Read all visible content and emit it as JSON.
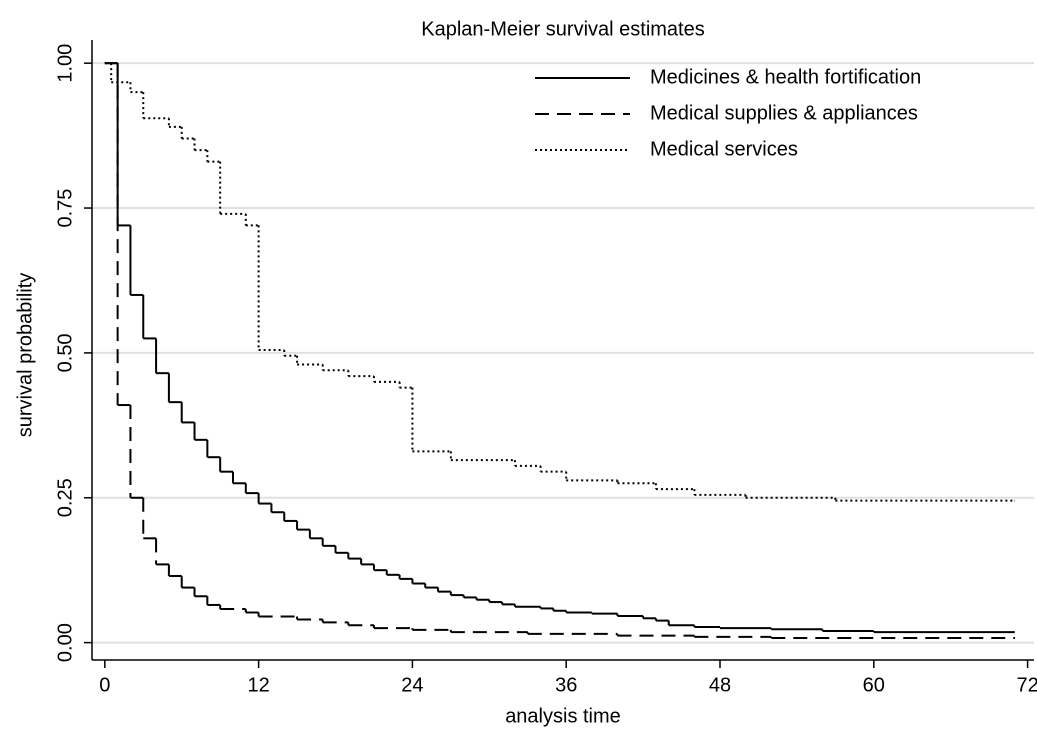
{
  "chart_data": {
    "type": "step",
    "title": "Kaplan-Meier survival estimates",
    "x_label": "analysis time",
    "y_label": "survival probability",
    "xlim": [
      -1,
      72.5
    ],
    "ylim": [
      -0.03,
      1.04
    ],
    "xticks": [
      0,
      12,
      24,
      36,
      48,
      60,
      72
    ],
    "yticks": [
      {
        "value": 0,
        "label": "0.00"
      },
      {
        "value": 0.25,
        "label": "0.25"
      },
      {
        "value": 0.5,
        "label": "0.50"
      },
      {
        "value": 0.75,
        "label": "0.75"
      },
      {
        "value": 1,
        "label": "1.00"
      }
    ],
    "grid": true,
    "legend": "top-right",
    "series": [
      {
        "name": "Medicines & health fortification",
        "color": "#000000",
        "dash": "none",
        "x": [
          0,
          1,
          2,
          3,
          4,
          5,
          6,
          7,
          8,
          9,
          10,
          11,
          12,
          13,
          14,
          15,
          16,
          17,
          18,
          19,
          20,
          21,
          22,
          23,
          24,
          25,
          26,
          27,
          28,
          29,
          30,
          31,
          32,
          34,
          35,
          36,
          38,
          40,
          42,
          43,
          44,
          46,
          48,
          52,
          56,
          60,
          71
        ],
        "values": [
          1.0,
          0.72,
          0.6,
          0.525,
          0.465,
          0.415,
          0.38,
          0.35,
          0.32,
          0.295,
          0.275,
          0.258,
          0.24,
          0.225,
          0.21,
          0.195,
          0.18,
          0.167,
          0.155,
          0.145,
          0.135,
          0.125,
          0.117,
          0.11,
          0.102,
          0.095,
          0.088,
          0.082,
          0.078,
          0.074,
          0.07,
          0.066,
          0.062,
          0.059,
          0.055,
          0.052,
          0.05,
          0.046,
          0.042,
          0.038,
          0.03,
          0.027,
          0.025,
          0.023,
          0.02,
          0.018,
          0.018
        ]
      },
      {
        "name": "Medical supplies & appliances",
        "color": "#000000",
        "dash": "14 8",
        "x": [
          0,
          1,
          2,
          3,
          4,
          5,
          6,
          7,
          8,
          9,
          11,
          12,
          15,
          17,
          19,
          21,
          24,
          27,
          33,
          40,
          46,
          52,
          71
        ],
        "values": [
          1.0,
          0.41,
          0.25,
          0.18,
          0.135,
          0.115,
          0.095,
          0.08,
          0.065,
          0.058,
          0.052,
          0.045,
          0.04,
          0.035,
          0.03,
          0.025,
          0.022,
          0.018,
          0.015,
          0.012,
          0.01,
          0.008,
          0.008
        ]
      },
      {
        "name": "Medical services",
        "color": "#000000",
        "dash": "2 3",
        "x": [
          0,
          0.5,
          2,
          3,
          5,
          6,
          7,
          8,
          9,
          11,
          12,
          14,
          15,
          17,
          19,
          21,
          23,
          24,
          27,
          32,
          34,
          36,
          40,
          43,
          46,
          50,
          57,
          71
        ],
        "values": [
          1.0,
          0.967,
          0.95,
          0.905,
          0.89,
          0.87,
          0.85,
          0.83,
          0.74,
          0.72,
          0.505,
          0.495,
          0.48,
          0.47,
          0.46,
          0.45,
          0.44,
          0.33,
          0.315,
          0.305,
          0.295,
          0.28,
          0.275,
          0.265,
          0.255,
          0.25,
          0.245,
          0.245
        ]
      }
    ]
  }
}
